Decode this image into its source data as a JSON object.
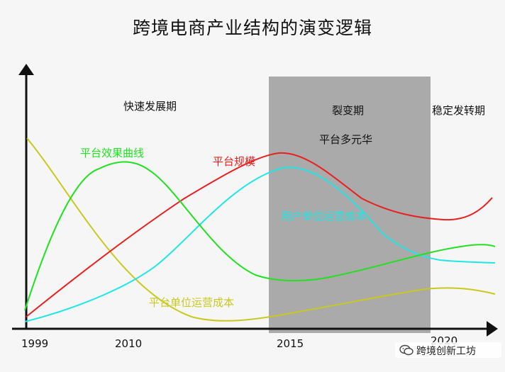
{
  "title": "跨境电商产业结构的演变逻辑",
  "phases": {
    "fast": "快速发展期",
    "fission": "裂变期",
    "fission_sub": "平台多元华",
    "stable": "稳定发转期"
  },
  "x_ticks": [
    "1999",
    "2010",
    "2015",
    "2020"
  ],
  "curves": {
    "platform_effect": {
      "label": "平台效果曲线",
      "color": "#22e022"
    },
    "platform_scale": {
      "label": "平台规模",
      "color": "#e82020"
    },
    "user_cost": {
      "label": "用户单位运营成本",
      "color": "#22e6e6"
    },
    "platform_cost": {
      "label": "平台单位运营成本",
      "color": "#c8c820"
    }
  },
  "shade_color": "#aaaaaa",
  "watermark": {
    "text": "跨境创新工坊"
  }
}
